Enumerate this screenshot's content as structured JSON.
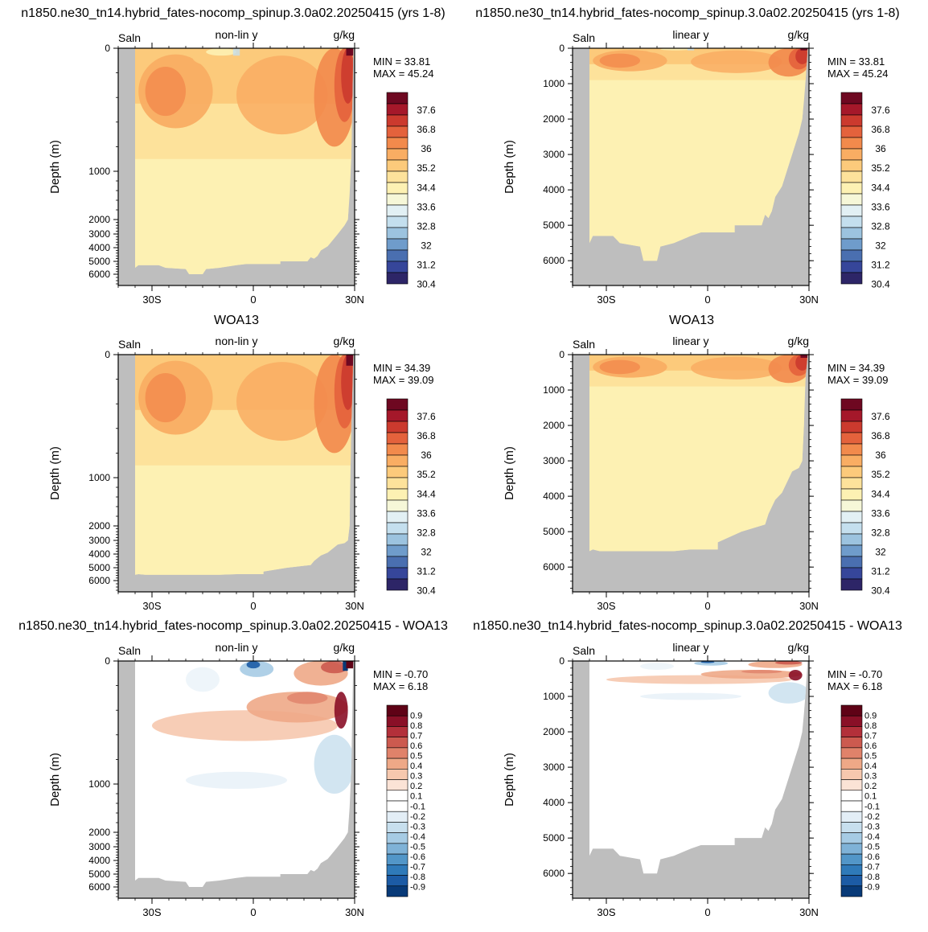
{
  "row_titles": [
    {
      "left": "n1850.ne30_tn14.hybrid_fates-nocomp_spinup.3.0a02.20250415 (yrs 1-8)",
      "right": "n1850.ne30_tn14.hybrid_fates-nocomp_spinup.3.0a02.20250415 (yrs 1-8)"
    },
    {
      "left": "WOA13",
      "right": "WOA13"
    },
    {
      "left": "n1850.ne30_tn14.hybrid_fates-nocomp_spinup.3.0a02.20250415 - WOA13",
      "right": "n1850.ne30_tn14.hybrid_fates-nocomp_spinup.3.0a02.20250415 - WOA13"
    }
  ],
  "colors": {
    "land": "#bebebe",
    "salinity_scale": [
      "#2d2567",
      "#36469a",
      "#4a6fb0",
      "#6f9ccb",
      "#9cc3df",
      "#c4dfee",
      "#e2f0f4",
      "#f6f7d8",
      "#fdf1b3",
      "#fde29b",
      "#fcca7b",
      "#f9ad63",
      "#f28a4c",
      "#e4623c",
      "#cb3a2e",
      "#a5182a",
      "#6e0821"
    ],
    "diff_scale": [
      "#083a78",
      "#1c5ba5",
      "#2f7ab9",
      "#5296c8",
      "#7fb2d7",
      "#a6cbe4",
      "#c7dfee",
      "#e3eef6",
      "#ffffff",
      "#ffffff",
      "#fbe3d6",
      "#f6c8ae",
      "#eea887",
      "#e0826a",
      "#cc5a4f",
      "#b3303a",
      "#8a1027",
      "#5f0216"
    ]
  },
  "chart_data": [
    {
      "type": "heatmap",
      "title": "n1850.ne30_tn14.hybrid_fates-nocomp_spinup.3.0a02.20250415 (yrs 1-8)",
      "left_label": "Saln",
      "center_label": "non-lin y",
      "units": "g/kg",
      "min_text": "MIN =  33.81",
      "max_text": "MAX =  45.24",
      "ylabel": "Depth (m)",
      "yscale": "non-lin",
      "ylim": [
        0,
        6700
      ],
      "xlim": [
        -40,
        30
      ],
      "xticks": [
        "30S",
        "0",
        "30N"
      ],
      "yticks": [
        "0",
        "1000",
        "2000",
        "3000",
        "4000",
        "5000",
        "6000"
      ],
      "colorbar_labels": [
        "37.6",
        "36.8",
        "36",
        "35.2",
        "34.4",
        "33.6",
        "32.8",
        "32",
        "31.2",
        "30.4"
      ]
    },
    {
      "type": "heatmap",
      "title": "n1850.ne30_tn14.hybrid_fates-nocomp_spinup.3.0a02.20250415 (yrs 1-8)",
      "left_label": "Saln",
      "center_label": "linear y",
      "units": "g/kg",
      "min_text": "MIN =  33.81",
      "max_text": "MAX =  45.24",
      "ylabel": "Depth (m)",
      "yscale": "linear",
      "ylim": [
        0,
        6700
      ],
      "xlim": [
        -40,
        30
      ],
      "xticks": [
        "30S",
        "0",
        "30N"
      ],
      "yticks": [
        "0",
        "1000",
        "2000",
        "3000",
        "4000",
        "5000",
        "6000"
      ],
      "colorbar_labels": [
        "37.6",
        "36.8",
        "36",
        "35.2",
        "34.4",
        "33.6",
        "32.8",
        "32",
        "31.2",
        "30.4"
      ]
    },
    {
      "type": "heatmap",
      "title": "WOA13",
      "left_label": "Saln",
      "center_label": "non-lin y",
      "units": "g/kg",
      "min_text": "MIN =  34.39",
      "max_text": "MAX =  39.09",
      "ylabel": "Depth (m)",
      "yscale": "non-lin",
      "ylim": [
        0,
        6700
      ],
      "xlim": [
        -40,
        30
      ],
      "xticks": [
        "30S",
        "0",
        "30N"
      ],
      "yticks": [
        "0",
        "1000",
        "2000",
        "3000",
        "4000",
        "5000",
        "6000"
      ],
      "colorbar_labels": [
        "37.6",
        "36.8",
        "36",
        "35.2",
        "34.4",
        "33.6",
        "32.8",
        "32",
        "31.2",
        "30.4"
      ]
    },
    {
      "type": "heatmap",
      "title": "WOA13",
      "left_label": "Saln",
      "center_label": "linear y",
      "units": "g/kg",
      "min_text": "MIN =  34.39",
      "max_text": "MAX =  39.09",
      "ylabel": "Depth (m)",
      "yscale": "linear",
      "ylim": [
        0,
        6700
      ],
      "xlim": [
        -40,
        30
      ],
      "xticks": [
        "30S",
        "0",
        "30N"
      ],
      "yticks": [
        "0",
        "1000",
        "2000",
        "3000",
        "4000",
        "5000",
        "6000"
      ],
      "colorbar_labels": [
        "37.6",
        "36.8",
        "36",
        "35.2",
        "34.4",
        "33.6",
        "32.8",
        "32",
        "31.2",
        "30.4"
      ]
    },
    {
      "type": "heatmap",
      "title": "n1850.ne30_tn14.hybrid_fates-nocomp_spinup.3.0a02.20250415 - WOA13",
      "left_label": "Saln",
      "center_label": "non-lin y",
      "units": "g/kg",
      "min_text": "MIN = -0.70",
      "max_text": "MAX =  6.18",
      "ylabel": "Depth (m)",
      "yscale": "non-lin",
      "ylim": [
        0,
        6700
      ],
      "xlim": [
        -40,
        30
      ],
      "xticks": [
        "30S",
        "0",
        "30N"
      ],
      "yticks": [
        "0",
        "1000",
        "2000",
        "3000",
        "4000",
        "5000",
        "6000"
      ],
      "colorbar_labels": [
        "0.9",
        "0.8",
        "0.7",
        "0.6",
        "0.5",
        "0.4",
        "0.3",
        "0.2",
        "0.1",
        "-0.1",
        "-0.2",
        "-0.3",
        "-0.4",
        "-0.5",
        "-0.6",
        "-0.7",
        "-0.8",
        "-0.9"
      ]
    },
    {
      "type": "heatmap",
      "title": "n1850.ne30_tn14.hybrid_fates-nocomp_spinup.3.0a02.20250415 - WOA13",
      "left_label": "Saln",
      "center_label": "linear y",
      "units": "g/kg",
      "min_text": "MIN = -0.70",
      "max_text": "MAX =  6.18",
      "ylabel": "Depth (m)",
      "yscale": "linear",
      "ylim": [
        0,
        6700
      ],
      "xlim": [
        -40,
        30
      ],
      "xticks": [
        "30S",
        "0",
        "30N"
      ],
      "yticks": [
        "0",
        "1000",
        "2000",
        "3000",
        "4000",
        "5000",
        "6000"
      ],
      "colorbar_labels": [
        "0.9",
        "0.8",
        "0.7",
        "0.6",
        "0.5",
        "0.4",
        "0.3",
        "0.2",
        "0.1",
        "-0.1",
        "-0.2",
        "-0.3",
        "-0.4",
        "-0.5",
        "-0.6",
        "-0.7",
        "-0.8",
        "-0.9"
      ]
    }
  ]
}
